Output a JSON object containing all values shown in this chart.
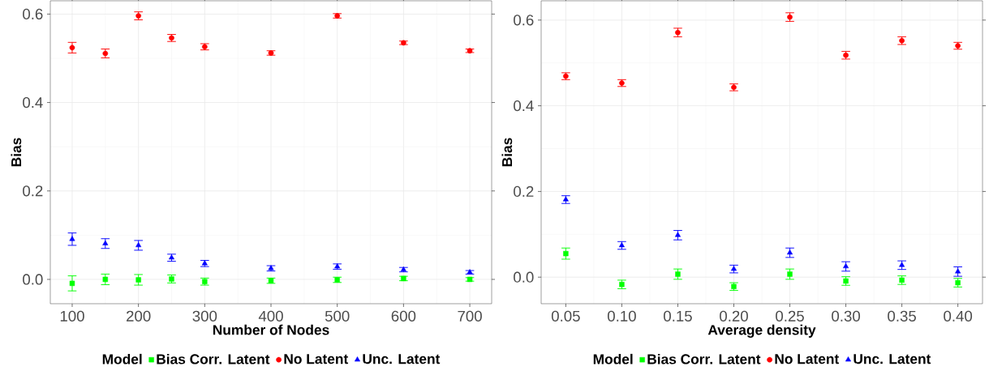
{
  "chart_data": [
    {
      "type": "scatter",
      "xlabel": "Number of Nodes",
      "ylabel": "Bias",
      "legend_title": "Model",
      "legend": "bottom",
      "grid": true,
      "x": [
        100,
        150,
        200,
        250,
        300,
        400,
        500,
        600,
        700
      ],
      "xlim": [
        67,
        733
      ],
      "ylim": [
        -0.055,
        0.63
      ],
      "xticks": [
        100,
        200,
        300,
        400,
        500,
        600,
        700
      ],
      "yticks": [
        {
          "value": 0,
          "label": "0.0"
        },
        {
          "value": 0.2,
          "label": "0.2"
        },
        {
          "value": 0.4,
          "label": "0.4"
        },
        {
          "value": 0.6,
          "label": "0.6"
        }
      ],
      "series": [
        {
          "name": "Bias Corr. Latent",
          "color": "#00ff00",
          "marker": "square",
          "values": [
            -0.009,
            0.0,
            -0.001,
            0.001,
            -0.005,
            -0.003,
            -0.001,
            0.002,
            0.0
          ],
          "errors": [
            0.017,
            0.012,
            0.012,
            0.009,
            0.008,
            0.006,
            0.006,
            0.005,
            0.004
          ]
        },
        {
          "name": "No Latent",
          "color": "#ff0000",
          "marker": "circle",
          "values": [
            0.524,
            0.511,
            0.596,
            0.546,
            0.526,
            0.512,
            0.596,
            0.535,
            0.517
          ],
          "errors": [
            0.012,
            0.01,
            0.009,
            0.008,
            0.007,
            0.005,
            0.005,
            0.004,
            0.004
          ]
        },
        {
          "name": "Unc. Latent",
          "color": "#0000ff",
          "marker": "triangle",
          "values": [
            0.091,
            0.081,
            0.077,
            0.049,
            0.036,
            0.025,
            0.029,
            0.022,
            0.016
          ],
          "errors": [
            0.014,
            0.011,
            0.011,
            0.008,
            0.007,
            0.006,
            0.006,
            0.005,
            0.004
          ]
        }
      ]
    },
    {
      "type": "scatter",
      "xlabel": "Average density",
      "ylabel": "Bias",
      "legend_title": "Model",
      "legend": "bottom",
      "grid": true,
      "x": [
        0.05,
        0.1,
        0.15,
        0.2,
        0.25,
        0.3,
        0.35,
        0.4
      ],
      "xlim": [
        0.028,
        0.422
      ],
      "ylim": [
        -0.062,
        0.645
      ],
      "xticks": [
        {
          "value": 0.05,
          "label": "0.05"
        },
        {
          "value": 0.1,
          "label": "0.10"
        },
        {
          "value": 0.15,
          "label": "0.15"
        },
        {
          "value": 0.2,
          "label": "0.20"
        },
        {
          "value": 0.25,
          "label": "0.25"
        },
        {
          "value": 0.3,
          "label": "0.30"
        },
        {
          "value": 0.35,
          "label": "0.35"
        },
        {
          "value": 0.4,
          "label": "0.40"
        }
      ],
      "yticks": [
        {
          "value": 0,
          "label": "0.0"
        },
        {
          "value": 0.2,
          "label": "0.2"
        },
        {
          "value": 0.4,
          "label": "0.4"
        },
        {
          "value": 0.6,
          "label": "0.6"
        }
      ],
      "series": [
        {
          "name": "Bias Corr. Latent",
          "color": "#00ff00",
          "marker": "square",
          "values": [
            0.055,
            -0.017,
            0.007,
            -0.022,
            0.007,
            -0.009,
            -0.007,
            -0.013
          ],
          "errors": [
            0.013,
            0.01,
            0.012,
            0.009,
            0.012,
            0.01,
            0.01,
            0.01
          ]
        },
        {
          "name": "No Latent",
          "color": "#ff0000",
          "marker": "circle",
          "values": [
            0.469,
            0.453,
            0.571,
            0.443,
            0.607,
            0.518,
            0.552,
            0.54
          ],
          "errors": [
            0.008,
            0.008,
            0.01,
            0.008,
            0.01,
            0.009,
            0.009,
            0.008
          ]
        },
        {
          "name": "Unc. Latent",
          "color": "#0000ff",
          "marker": "triangle",
          "values": [
            0.181,
            0.074,
            0.098,
            0.019,
            0.057,
            0.025,
            0.028,
            0.013
          ],
          "errors": [
            0.009,
            0.009,
            0.011,
            0.009,
            0.011,
            0.011,
            0.01,
            0.011
          ]
        }
      ]
    }
  ]
}
